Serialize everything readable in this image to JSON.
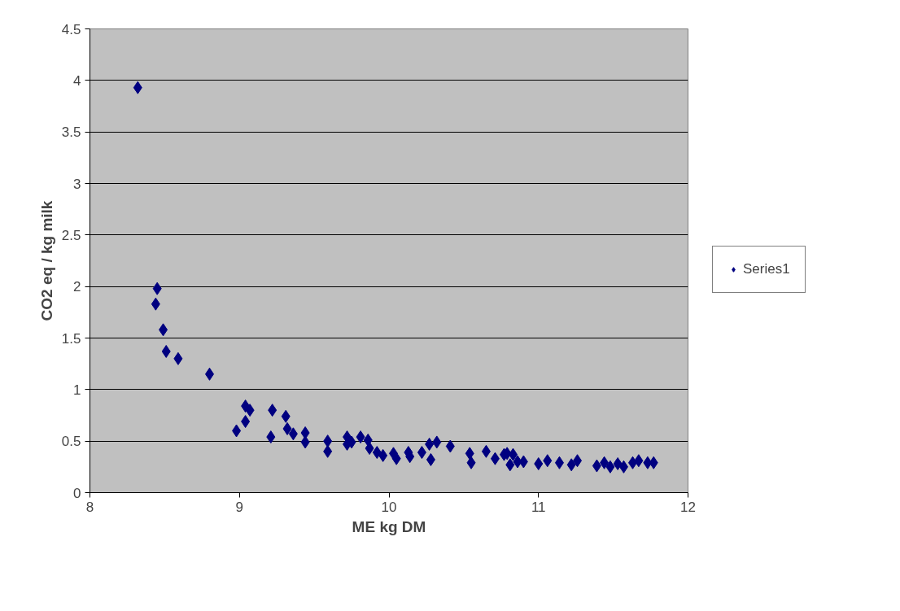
{
  "chart_data": {
    "type": "scatter",
    "xlabel": "ME kg DM",
    "ylabel": "CO2 eq / kg milk",
    "xlim": [
      8,
      12
    ],
    "xticks": [
      8,
      9,
      10,
      11,
      12
    ],
    "ylim": [
      0,
      4.5
    ],
    "yticks": [
      0,
      0.5,
      1,
      1.5,
      2,
      2.5,
      3,
      3.5,
      4,
      4.5
    ],
    "grid": "y",
    "legend": "right",
    "marker": "diamond",
    "series": [
      {
        "name": "Series1",
        "color": "#000080",
        "x": [
          8.32,
          8.45,
          8.44,
          8.49,
          8.51,
          8.59,
          8.8,
          8.98,
          9.04,
          9.04,
          9.07,
          9.22,
          9.21,
          9.31,
          9.32,
          9.36,
          9.44,
          9.44,
          9.59,
          9.59,
          9.72,
          9.72,
          9.75,
          9.81,
          9.86,
          9.87,
          9.92,
          9.96,
          10.03,
          10.05,
          10.13,
          10.14,
          10.22,
          10.27,
          10.28,
          10.32,
          10.41,
          10.54,
          10.55,
          10.65,
          10.71,
          10.77,
          10.81,
          10.79,
          10.83,
          10.86,
          10.9,
          11.0,
          11.06,
          11.14,
          11.22,
          11.26,
          11.39,
          11.44,
          11.48,
          11.53,
          11.57,
          11.63,
          11.67,
          11.73,
          11.77
        ],
        "values": [
          3.93,
          1.98,
          1.83,
          1.58,
          1.37,
          1.3,
          1.15,
          0.6,
          0.69,
          0.84,
          0.8,
          0.8,
          0.54,
          0.74,
          0.62,
          0.57,
          0.58,
          0.49,
          0.5,
          0.4,
          0.54,
          0.47,
          0.49,
          0.54,
          0.51,
          0.43,
          0.39,
          0.36,
          0.38,
          0.33,
          0.39,
          0.35,
          0.39,
          0.47,
          0.32,
          0.49,
          0.45,
          0.38,
          0.29,
          0.4,
          0.33,
          0.37,
          0.27,
          0.38,
          0.37,
          0.3,
          0.3,
          0.28,
          0.31,
          0.29,
          0.27,
          0.31,
          0.26,
          0.29,
          0.25,
          0.28,
          0.25,
          0.29,
          0.31,
          0.29,
          0.29
        ]
      }
    ]
  }
}
